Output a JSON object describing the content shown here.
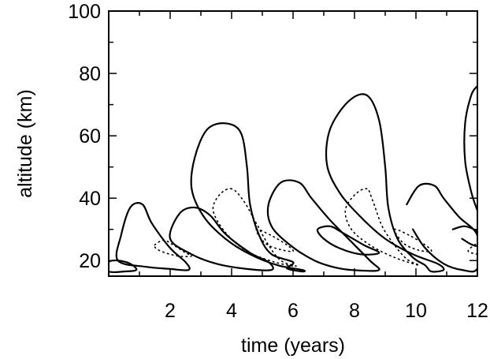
{
  "chart_data": {
    "type": "contour",
    "xlabel": "time (years)",
    "ylabel": "altitude (km)",
    "xlim": [
      0,
      12
    ],
    "ylim": [
      15,
      100
    ],
    "xticks": [
      2,
      4,
      6,
      8,
      10,
      12
    ],
    "yticks": [
      20,
      40,
      60,
      80,
      100
    ],
    "contours": [
      {
        "name": "c1-solid-small",
        "style": "solid",
        "points": [
          [
            0,
            16.5
          ],
          [
            0.5,
            16.5
          ],
          [
            0.9,
            17
          ],
          [
            0.7,
            19
          ],
          [
            0.3,
            20
          ],
          [
            0,
            19.5
          ]
        ]
      },
      {
        "name": "c2-solid",
        "style": "solid",
        "points": [
          [
            0.3,
            20
          ],
          [
            0.4,
            28
          ],
          [
            0.7,
            37
          ],
          [
            1.1,
            38
          ],
          [
            1.4,
            32
          ],
          [
            2.0,
            24
          ],
          [
            2.5,
            19.5
          ],
          [
            2.6,
            17
          ],
          [
            2.0,
            17.3
          ],
          [
            1.2,
            18
          ]
        ]
      },
      {
        "name": "c2-dotted",
        "style": "dotted",
        "points": [
          [
            1.5,
            25
          ],
          [
            1.8,
            26.5
          ],
          [
            2.1,
            25
          ],
          [
            2.5,
            22.5
          ],
          [
            2.7,
            21.5
          ],
          [
            2.4,
            21.3
          ],
          [
            2.0,
            22
          ],
          [
            1.6,
            23.5
          ]
        ]
      },
      {
        "name": "c3-solid",
        "style": "solid",
        "points": [
          [
            2.0,
            27
          ],
          [
            2.3,
            35
          ],
          [
            2.8,
            37
          ],
          [
            3.3,
            34.5
          ],
          [
            3.8,
            28.5
          ],
          [
            4.6,
            22.5
          ],
          [
            5.2,
            19.5
          ],
          [
            5.3,
            17
          ],
          [
            4.5,
            17.3
          ],
          [
            3.5,
            19
          ],
          [
            2.7,
            22
          ]
        ]
      },
      {
        "name": "c4-solid",
        "style": "solid",
        "points": [
          [
            3.8,
            64
          ],
          [
            3.2,
            62
          ],
          [
            2.8,
            53
          ],
          [
            2.7,
            43
          ],
          [
            3.1,
            34
          ],
          [
            3.8,
            27
          ],
          [
            4.6,
            22
          ],
          [
            5.5,
            18.5
          ],
          [
            6.3,
            17
          ],
          [
            6.3,
            16.5
          ],
          [
            5.8,
            17.5
          ],
          [
            6.0,
            19.5
          ],
          [
            5.3,
            22
          ],
          [
            4.9,
            28
          ],
          [
            4.6,
            38
          ],
          [
            4.5,
            50
          ],
          [
            4.3,
            61
          ]
        ]
      },
      {
        "name": "c4-dotted-outer",
        "style": "dotted",
        "points": [
          [
            4.0,
            43
          ],
          [
            3.6,
            41
          ],
          [
            3.4,
            36
          ],
          [
            3.8,
            29
          ],
          [
            4.5,
            23
          ],
          [
            5.4,
            19.5
          ],
          [
            6.1,
            18.2
          ],
          [
            5.6,
            20
          ],
          [
            5.2,
            25
          ],
          [
            4.8,
            32
          ],
          [
            4.4,
            39
          ]
        ]
      },
      {
        "name": "c4-dotted-inner",
        "style": "dotted",
        "points": [
          [
            4.8,
            30
          ],
          [
            5.3,
            28
          ],
          [
            5.8,
            25
          ],
          [
            6.0,
            23
          ],
          [
            5.6,
            23.5
          ],
          [
            5.1,
            25.5
          ]
        ]
      },
      {
        "name": "c5-solid",
        "style": "solid",
        "points": [
          [
            5.2,
            38
          ],
          [
            5.6,
            45
          ],
          [
            6.2,
            45
          ],
          [
            6.6,
            40
          ],
          [
            7.2,
            33
          ],
          [
            7.8,
            27
          ],
          [
            8.5,
            20
          ],
          [
            8.8,
            17
          ],
          [
            8.2,
            16.8
          ],
          [
            7.5,
            17.5
          ],
          [
            6.7,
            20
          ],
          [
            5.9,
            25
          ],
          [
            5.3,
            31
          ]
        ]
      },
      {
        "name": "c5-inner-solid",
        "style": "solid",
        "points": [
          [
            6.8,
            30
          ],
          [
            7.2,
            31
          ],
          [
            7.6,
            29
          ],
          [
            8.3,
            25
          ],
          [
            8.8,
            22.5
          ],
          [
            8.2,
            22
          ],
          [
            7.5,
            24
          ],
          [
            7.0,
            27
          ]
        ]
      },
      {
        "name": "c6-solid",
        "style": "solid",
        "points": [
          [
            8.4,
            73
          ],
          [
            7.8,
            71
          ],
          [
            7.2,
            62
          ],
          [
            7.1,
            51
          ],
          [
            7.5,
            42
          ],
          [
            8.2,
            34
          ],
          [
            9.0,
            27
          ],
          [
            9.9,
            22
          ],
          [
            10.7,
            19
          ],
          [
            10.9,
            17
          ],
          [
            10.5,
            16.5
          ],
          [
            10.3,
            18.5
          ],
          [
            9.9,
            21
          ],
          [
            9.4,
            27
          ],
          [
            9.1,
            37
          ],
          [
            9.0,
            50
          ],
          [
            8.8,
            65
          ]
        ]
      },
      {
        "name": "c6-dotted-outer",
        "style": "dotted",
        "points": [
          [
            8.4,
            43
          ],
          [
            8.0,
            41
          ],
          [
            7.7,
            36
          ],
          [
            7.9,
            30
          ],
          [
            8.5,
            25
          ],
          [
            9.3,
            21
          ],
          [
            10.1,
            18.5
          ],
          [
            9.7,
            20.5
          ],
          [
            9.3,
            25
          ],
          [
            8.9,
            31
          ],
          [
            8.6,
            39
          ]
        ]
      },
      {
        "name": "c6-dotted-inner",
        "style": "dotted",
        "points": [
          [
            9.3,
            30
          ],
          [
            9.8,
            28
          ],
          [
            10.3,
            25
          ],
          [
            10.5,
            23
          ],
          [
            10.1,
            23.3
          ],
          [
            9.6,
            25.5
          ]
        ]
      },
      {
        "name": "c7-solid",
        "style": "solid",
        "points": [
          [
            9.7,
            38
          ],
          [
            10.1,
            44
          ],
          [
            10.6,
            44
          ],
          [
            10.9,
            40
          ],
          [
            11.4,
            34
          ],
          [
            12,
            28
          ],
          [
            12,
            17.5
          ],
          [
            11.5,
            17
          ],
          [
            10.9,
            19
          ],
          [
            10.3,
            24
          ],
          [
            9.9,
            30
          ]
        ]
      },
      {
        "name": "c7-inner-solid",
        "style": "solid",
        "points": [
          [
            11.2,
            30
          ],
          [
            11.6,
            31
          ],
          [
            12,
            29
          ],
          [
            12,
            25
          ],
          [
            11.8,
            25.2
          ],
          [
            11.5,
            27
          ]
        ]
      },
      {
        "name": "c8-solid-partial",
        "style": "solid",
        "points": [
          [
            12,
            76
          ],
          [
            11.8,
            73
          ],
          [
            11.6,
            64
          ],
          [
            11.6,
            52
          ],
          [
            11.8,
            42
          ],
          [
            12,
            36
          ]
        ]
      },
      {
        "name": "c8-dotted-partial",
        "style": "dotted",
        "points": [
          [
            12,
            22
          ],
          [
            11.7,
            23
          ],
          [
            11.9,
            25
          ],
          [
            12,
            25.5
          ]
        ]
      }
    ]
  }
}
